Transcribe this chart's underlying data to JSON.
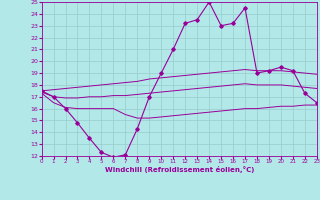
{
  "xlabel": "Windchill (Refroidissement éolien,°C)",
  "background_color": "#b3e8e8",
  "line_color": "#990099",
  "grid_color": "#99cccc",
  "x": [
    0,
    1,
    2,
    3,
    4,
    5,
    6,
    7,
    8,
    9,
    10,
    11,
    12,
    13,
    14,
    15,
    16,
    17,
    18,
    19,
    20,
    21,
    22,
    23
  ],
  "main_line": [
    17.5,
    17.0,
    16.0,
    14.8,
    13.5,
    12.3,
    11.9,
    12.1,
    14.3,
    17.0,
    19.0,
    21.0,
    23.2,
    23.5,
    25.0,
    23.0,
    23.2,
    24.5,
    19.0,
    19.2,
    19.5,
    19.2,
    17.3,
    16.5
  ],
  "upper_line": [
    17.5,
    17.6,
    17.7,
    17.8,
    17.9,
    18.0,
    18.1,
    18.2,
    18.3,
    18.5,
    18.6,
    18.7,
    18.8,
    18.9,
    19.0,
    19.1,
    19.2,
    19.3,
    19.2,
    19.2,
    19.2,
    19.1,
    19.0,
    18.9
  ],
  "lower_line": [
    17.3,
    16.5,
    16.1,
    16.0,
    16.0,
    16.0,
    16.0,
    15.5,
    15.2,
    15.2,
    15.3,
    15.4,
    15.5,
    15.6,
    15.7,
    15.8,
    15.9,
    16.0,
    16.0,
    16.1,
    16.2,
    16.2,
    16.3,
    16.3
  ],
  "mid_line": [
    17.4,
    17.0,
    16.9,
    16.9,
    17.0,
    17.0,
    17.1,
    17.1,
    17.2,
    17.3,
    17.4,
    17.5,
    17.6,
    17.7,
    17.8,
    17.9,
    18.0,
    18.1,
    18.0,
    18.0,
    18.0,
    17.9,
    17.8,
    17.7
  ],
  "ylim": [
    12,
    25
  ],
  "xlim": [
    0,
    23
  ],
  "yticks": [
    12,
    13,
    14,
    15,
    16,
    17,
    18,
    19,
    20,
    21,
    22,
    23,
    24,
    25
  ],
  "xticks": [
    0,
    1,
    2,
    3,
    4,
    5,
    6,
    7,
    8,
    9,
    10,
    11,
    12,
    13,
    14,
    15,
    16,
    17,
    18,
    19,
    20,
    21,
    22,
    23
  ]
}
